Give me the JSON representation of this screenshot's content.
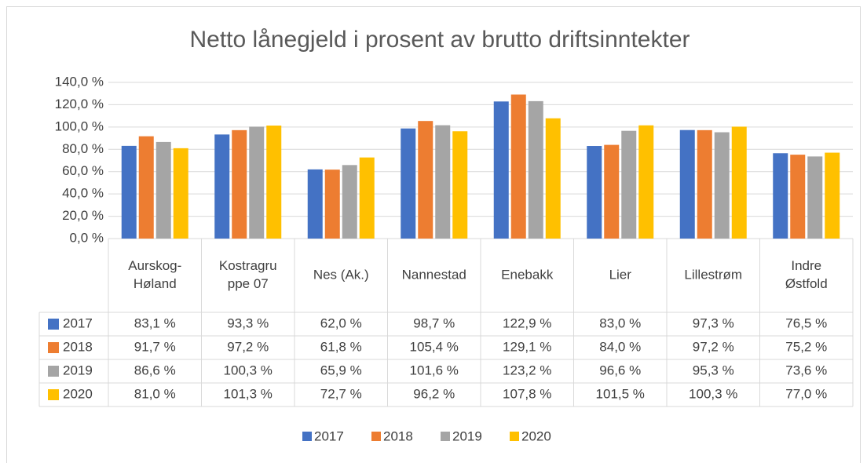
{
  "chart_data": {
    "type": "bar",
    "title": "Netto lånegjeld i prosent av brutto driftsinntekter",
    "categories": [
      [
        "Aurskog-",
        "Høland"
      ],
      [
        "Kostragru",
        "ppe 07"
      ],
      [
        "Nes (Ak.)"
      ],
      [
        "Nannestad"
      ],
      [
        "Enebakk"
      ],
      [
        "Lier"
      ],
      [
        "Lillestrøm"
      ],
      [
        "Indre",
        "Østfold"
      ]
    ],
    "series": [
      {
        "name": "2017",
        "color": "#4472c4",
        "values": [
          83.1,
          93.3,
          62.0,
          98.7,
          122.9,
          83.0,
          97.3,
          76.5
        ],
        "value_labels": [
          "83,1 %",
          "93,3 %",
          "62,0 %",
          "98,7 %",
          "122,9 %",
          "83,0 %",
          "97,3 %",
          "76,5 %"
        ]
      },
      {
        "name": "2018",
        "color": "#ed7d31",
        "values": [
          91.7,
          97.2,
          61.8,
          105.4,
          129.1,
          84.0,
          97.2,
          75.2
        ],
        "value_labels": [
          "91,7 %",
          "97,2 %",
          "61,8 %",
          "105,4 %",
          "129,1 %",
          "84,0 %",
          "97,2 %",
          "75,2 %"
        ]
      },
      {
        "name": "2019",
        "color": "#a5a5a5",
        "values": [
          86.6,
          100.3,
          65.9,
          101.6,
          123.2,
          96.6,
          95.3,
          73.6
        ],
        "value_labels": [
          "86,6 %",
          "100,3 %",
          "65,9 %",
          "101,6 %",
          "123,2 %",
          "96,6 %",
          "95,3 %",
          "73,6 %"
        ]
      },
      {
        "name": "2020",
        "color": "#ffc000",
        "values": [
          81.0,
          101.3,
          72.7,
          96.2,
          107.8,
          101.5,
          100.3,
          77.0
        ],
        "value_labels": [
          "81,0 %",
          "101,3 %",
          "72,7 %",
          "96,2 %",
          "107,8 %",
          "101,5 %",
          "100,3 %",
          "77,0 %"
        ]
      }
    ],
    "ylim": [
      0,
      140
    ],
    "yticks": [
      {
        "value": 0,
        "label": "0,0 %"
      },
      {
        "value": 20,
        "label": "20,0 %"
      },
      {
        "value": 40,
        "label": "40,0 %"
      },
      {
        "value": 60,
        "label": "60,0 %"
      },
      {
        "value": 80,
        "label": "80,0 %"
      },
      {
        "value": 100,
        "label": "100,0 %"
      },
      {
        "value": 120,
        "label": "120,0 %"
      },
      {
        "value": 140,
        "label": "140,0 %"
      }
    ],
    "grid": true,
    "legend": "bottom"
  }
}
